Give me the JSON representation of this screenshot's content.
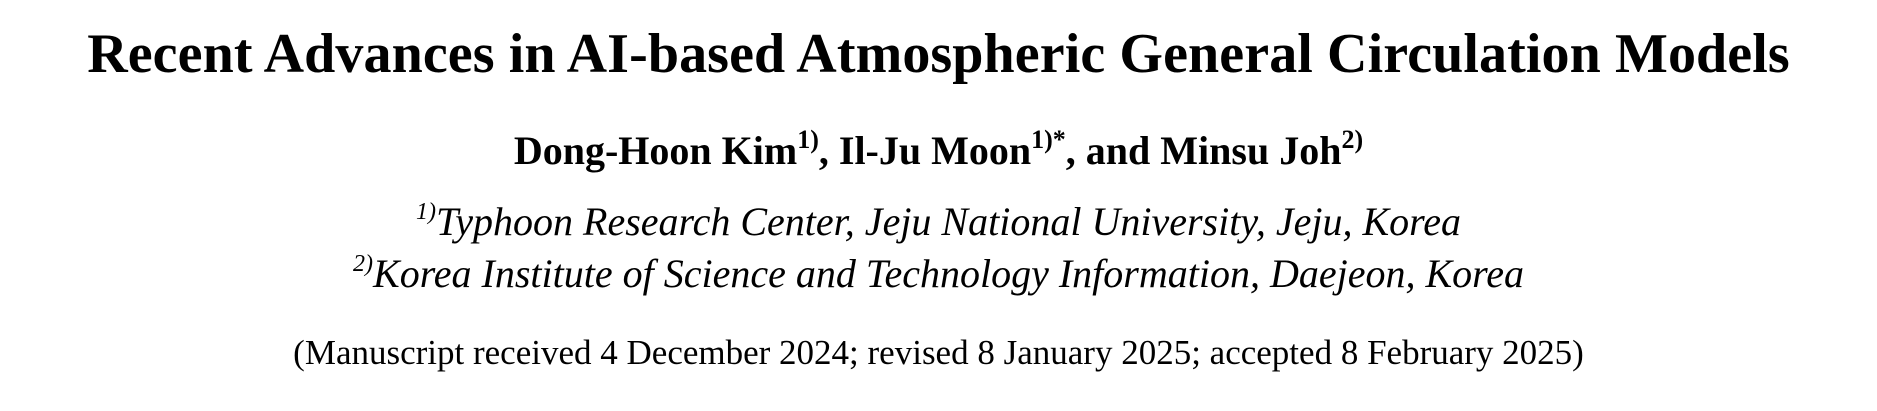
{
  "paper": {
    "title": "Recent Advances in AI-based Atmospheric General Circulation Models",
    "authors": [
      {
        "name": "Dong-Hoon Kim",
        "affil_mark": "1)",
        "separator": ", "
      },
      {
        "name": "Il-Ju Moon",
        "affil_mark": "1)*",
        "separator": ", and "
      },
      {
        "name": "Minsu Joh",
        "affil_mark": "2)",
        "separator": ""
      }
    ],
    "affiliations": [
      {
        "mark": "1)",
        "text": "Typhoon Research Center, Jeju National University, Jeju, Korea"
      },
      {
        "mark": "2)",
        "text": "Korea Institute of Science and Technology Information, Daejeon, Korea"
      }
    ],
    "received_line": "(Manuscript received 4 December 2024; revised 8 January 2025; accepted 8 February 2025)"
  }
}
